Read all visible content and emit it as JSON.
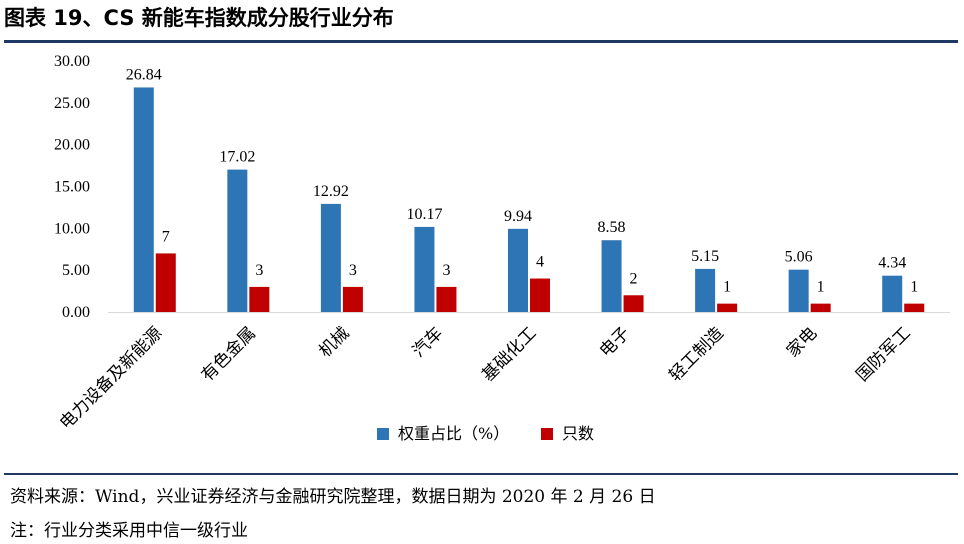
{
  "header": {
    "title": "图表 19、CS 新能车指数成分股行业分布"
  },
  "footer": {
    "source": "资料来源：Wind，兴业证券经济与金融研究院整理，数据日期为 2020 年 2 月 26 日",
    "note": "注：行业分类采用中信一级行业"
  },
  "chart_data": {
    "type": "bar",
    "categories": [
      "电力设备及新能源",
      "有色金属",
      "机械",
      "汽车",
      "基础化工",
      "电子",
      "轻工制造",
      "家电",
      "国防军工"
    ],
    "series": [
      {
        "name": "权重占比（%）",
        "color": "#2e75b6",
        "values": [
          26.84,
          17.02,
          12.92,
          10.17,
          9.94,
          8.58,
          5.15,
          5.06,
          4.34
        ],
        "labels": [
          "26.84",
          "17.02",
          "12.92",
          "10.17",
          "9.94",
          "8.58",
          "5.15",
          "5.06",
          "4.34"
        ]
      },
      {
        "name": "只数",
        "color": "#c00000",
        "values": [
          7,
          3,
          3,
          3,
          4,
          2,
          1,
          1,
          1
        ],
        "labels": [
          "7",
          "3",
          "3",
          "3",
          "4",
          "2",
          "1",
          "1",
          "1"
        ]
      }
    ],
    "ylim": [
      0,
      30
    ],
    "yticks": [
      "0.00",
      "5.00",
      "10.00",
      "15.00",
      "20.00",
      "25.00",
      "30.00"
    ],
    "grid": false,
    "legend_position": "bottom-center"
  }
}
